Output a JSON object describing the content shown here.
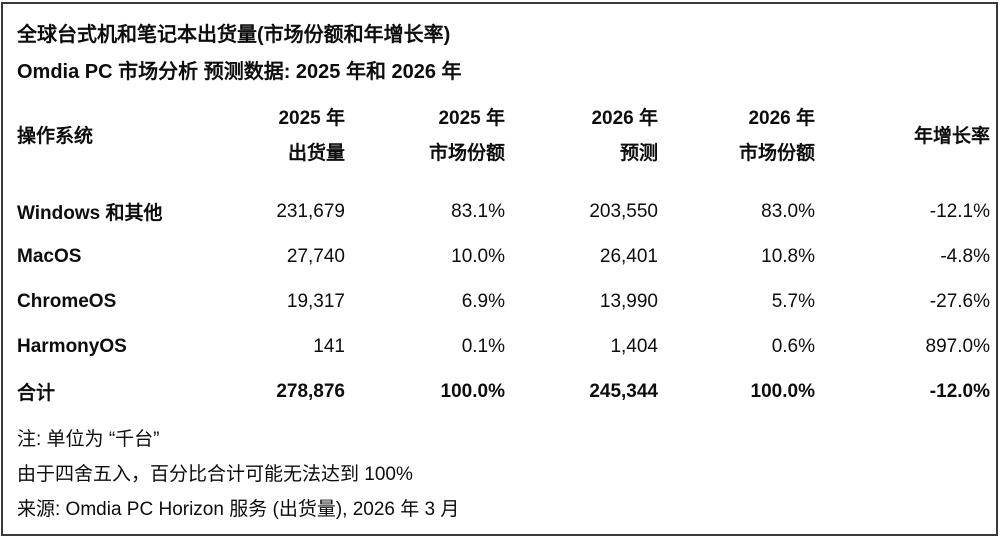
{
  "title": "全球台式机和笔记本出货量(市场份额和年增长率)",
  "subtitle": "Omdia PC 市场分析 预测数据: 2025 年和 2026 年",
  "table": {
    "header": {
      "os": "操作系统",
      "col2_line1": "2025 年",
      "col2_line2": "出货量",
      "col3_line1": "2025 年",
      "col3_line2": "市场份额",
      "col4_line1": "2026 年",
      "col4_line2": "预测",
      "col5_line1": "2026 年",
      "col5_line2": "市场份额",
      "yoy": "年增长率"
    },
    "rows": [
      {
        "os": "Windows 和其他",
        "ship2025": "231,679",
        "share2025": "83.1%",
        "forecast2026": "203,550",
        "share2026": "83.0%",
        "yoy": "-12.1%"
      },
      {
        "os": "MacOS",
        "ship2025": "27,740",
        "share2025": "10.0%",
        "forecast2026": "26,401",
        "share2026": "10.8%",
        "yoy": "-4.8%"
      },
      {
        "os": "ChromeOS",
        "ship2025": "19,317",
        "share2025": "6.9%",
        "forecast2026": "13,990",
        "share2026": "5.7%",
        "yoy": "-27.6%"
      },
      {
        "os": "HarmonyOS",
        "ship2025": "141",
        "share2025": "0.1%",
        "forecast2026": "1,404",
        "share2026": "0.6%",
        "yoy": "897.0%"
      }
    ],
    "total": {
      "os": "合计",
      "ship2025": "278,876",
      "share2025": "100.0%",
      "forecast2026": "245,344",
      "share2026": "100.0%",
      "yoy": "-12.0%"
    }
  },
  "notes": [
    "注: 单位为 “千台”",
    "由于四舍五入，百分比合计可能无法达到 100%",
    "来源: Omdia PC Horizon 服务 (出货量), 2026 年 3 月"
  ],
  "colors": {
    "text": "#0d0d0d",
    "background": "#ffffff",
    "border": "#3a3a3a"
  },
  "chart_data": {
    "type": "table",
    "title": "全球台式机和笔记本出货量(市场份额和年增长率)",
    "subtitle": "Omdia PC 市场分析 预测数据: 2025 年和 2026 年",
    "columns": [
      "操作系统",
      "2025 年出货量",
      "2025 年市场份额",
      "2026 年预测",
      "2026 年市场份额",
      "年增长率"
    ],
    "rows": [
      [
        "Windows 和其他",
        231679,
        "83.1%",
        203550,
        "83.0%",
        "-12.1%"
      ],
      [
        "MacOS",
        27740,
        "10.0%",
        26401,
        "10.8%",
        "-4.8%"
      ],
      [
        "ChromeOS",
        19317,
        "6.9%",
        13990,
        "5.7%",
        "-27.6%"
      ],
      [
        "HarmonyOS",
        141,
        "0.1%",
        1404,
        "0.6%",
        "897.0%"
      ],
      [
        "合计",
        278876,
        "100.0%",
        245344,
        "100.0%",
        "-12.0%"
      ]
    ],
    "units": "千台",
    "notes": [
      "注: 单位为 “千台”",
      "由于四舍五入，百分比合计可能无法达到 100%",
      "来源: Omdia PC Horizon 服务 (出货量), 2026 年 3 月"
    ]
  }
}
